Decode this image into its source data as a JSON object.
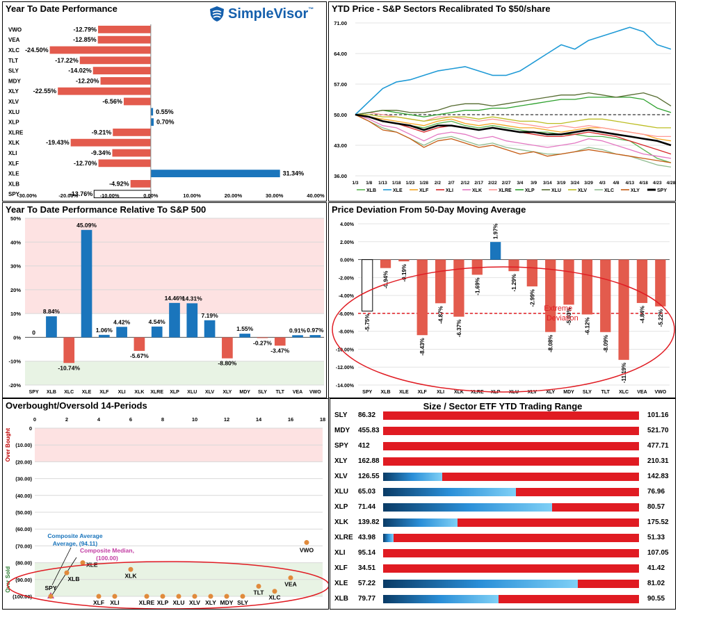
{
  "brand": {
    "name": "SimpleVisor",
    "tm": "™"
  },
  "chart_data": [
    {
      "id": "ytd",
      "type": "bar",
      "orientation": "horizontal",
      "title": "Year To Date Performance",
      "categories": [
        "VWO",
        "VEA",
        "XLC",
        "TLT",
        "SLY",
        "MDY",
        "XLY",
        "XLV",
        "XLU",
        "XLP",
        "XLRE",
        "XLK",
        "XLI",
        "XLF",
        "XLE",
        "XLB",
        "SPY"
      ],
      "values": [
        -12.79,
        -12.85,
        -24.5,
        -17.22,
        -14.02,
        -12.2,
        -22.55,
        -6.56,
        0.55,
        0.7,
        -9.21,
        -19.43,
        -9.34,
        -12.7,
        31.34,
        -4.92,
        -13.76
      ],
      "labels": [
        "-12.79%",
        "-12.85%",
        "-24.50%",
        "-17.22%",
        "-14.02%",
        "-12.20%",
        "-22.55%",
        "-6.56%",
        "0.55%",
        "0.70%",
        "-9.21%",
        "-19.43%",
        "-9.34%",
        "-12.70%",
        "31.34%",
        "-4.92%",
        "-13.76%"
      ],
      "xlim": [
        -30,
        40
      ],
      "xticks": [
        "-30.00%",
        "-20.00%",
        "-10.00%",
        "0.00%",
        "10.00%",
        "20.00%",
        "30.00%",
        "40.00%"
      ]
    },
    {
      "id": "recal",
      "type": "line",
      "title": "YTD Price - S&P Sectors Recalibrated To $50/share",
      "x": [
        "1/3",
        "1/8",
        "1/13",
        "1/18",
        "1/23",
        "1/28",
        "2/2",
        "2/7",
        "2/12",
        "2/17",
        "2/22",
        "2/27",
        "3/4",
        "3/9",
        "3/14",
        "3/19",
        "3/24",
        "3/29",
        "4/3",
        "4/8",
        "4/13",
        "4/18",
        "4/23",
        "4/28"
      ],
      "ylim": [
        36,
        71
      ],
      "yticks": [
        "36.00",
        "43.00",
        "50.00",
        "57.00",
        "64.00",
        "71.00"
      ],
      "reference_line": 50,
      "series": [
        {
          "name": "XLB",
          "color": "#5ab552",
          "values": [
            50,
            49.5,
            48.5,
            48,
            47.5,
            47,
            48,
            48.5,
            47.5,
            47,
            47.5,
            47,
            46.5,
            46,
            46,
            45.5,
            45.5,
            45,
            45,
            44.5,
            44,
            42,
            40,
            39
          ]
        },
        {
          "name": "XLE",
          "color": "#1f9ad6",
          "values": [
            50,
            53,
            56,
            57.5,
            58,
            59,
            60,
            60.5,
            61,
            60,
            59,
            59,
            60,
            62,
            64,
            66,
            65,
            67,
            68,
            69,
            70,
            69,
            66,
            65
          ]
        },
        {
          "name": "XLF",
          "color": "#f5a623",
          "values": [
            50,
            49.5,
            49,
            48.5,
            48,
            47.5,
            48.5,
            49,
            48,
            47.5,
            48,
            47.5,
            47,
            47,
            46.5,
            46,
            46.5,
            47,
            47,
            46.5,
            46,
            45.5,
            44.5,
            44
          ]
        },
        {
          "name": "XLI",
          "color": "#d62728",
          "values": [
            50,
            49.5,
            48.5,
            48,
            47,
            46,
            47,
            47.5,
            47,
            46.5,
            47,
            46.5,
            46,
            45.5,
            45,
            45,
            45.5,
            46,
            45.5,
            45,
            44,
            43,
            42,
            41
          ]
        },
        {
          "name": "XLK",
          "color": "#e377c2",
          "values": [
            50,
            49,
            47.5,
            47,
            45.5,
            44,
            45.5,
            46,
            45.5,
            44.5,
            45,
            44,
            43.5,
            43,
            42.5,
            43,
            43.5,
            44.5,
            44,
            43,
            42,
            41,
            40.5,
            40
          ]
        },
        {
          "name": "XLRE",
          "color": "#ff9896",
          "values": [
            50,
            50.5,
            50,
            49.5,
            49,
            48.5,
            49.5,
            49.5,
            49,
            48.5,
            49,
            48.5,
            48,
            47.5,
            47,
            47.5,
            47,
            47.5,
            47,
            46.5,
            46,
            45.5,
            45,
            45
          ]
        },
        {
          "name": "XLP",
          "color": "#2ca02c",
          "values": [
            50,
            50.5,
            51,
            50.5,
            50,
            49.5,
            50,
            50.5,
            51,
            51,
            51.5,
            51.5,
            52,
            52.5,
            53,
            53.5,
            53.5,
            54,
            54,
            54,
            54,
            53.5,
            51.5,
            50.5
          ]
        },
        {
          "name": "XLU",
          "color": "#556b2f",
          "values": [
            50,
            50.5,
            51,
            51,
            50.5,
            50.5,
            51,
            52,
            52.5,
            52.5,
            52,
            52.5,
            53,
            53.5,
            54,
            54.5,
            54.5,
            55,
            54.5,
            54,
            54.5,
            55,
            54,
            52
          ]
        },
        {
          "name": "XLV",
          "color": "#bcbd22",
          "values": [
            50,
            50,
            49.5,
            49.5,
            49,
            48.5,
            49,
            49.5,
            49.5,
            49,
            49.5,
            49,
            48.5,
            48.5,
            48,
            48,
            48.5,
            49,
            49,
            48.5,
            48,
            47.5,
            47,
            47
          ]
        },
        {
          "name": "XLC",
          "color": "#8fbc8f",
          "values": [
            50,
            48.5,
            47,
            46,
            44.5,
            43,
            44.5,
            45,
            44,
            43,
            43.5,
            42.5,
            42,
            41.5,
            41,
            41,
            41.5,
            42.5,
            42,
            41,
            40.5,
            39.5,
            38.5,
            38
          ]
        },
        {
          "name": "XLY",
          "color": "#c55a11",
          "values": [
            50,
            48.5,
            46.5,
            46,
            44.5,
            42.5,
            44,
            44.5,
            43.5,
            42.5,
            43,
            42,
            41,
            41.5,
            40.5,
            41,
            41.5,
            42,
            41.5,
            41,
            40.5,
            40,
            39.5,
            39
          ]
        },
        {
          "name": "SPY",
          "color": "#000000",
          "values": [
            50,
            49.5,
            48.5,
            48,
            47.5,
            46.5,
            47.5,
            47.5,
            47,
            46.5,
            47,
            46.5,
            46,
            46,
            45.5,
            45.5,
            46,
            46.5,
            46,
            45.5,
            45,
            44.5,
            44,
            43
          ]
        }
      ],
      "legend": [
        "XLB",
        "XLE",
        "XLF",
        "XLI",
        "XLK",
        "XLRE",
        "XLP",
        "XLU",
        "XLV",
        "XLC",
        "XLY",
        "SPY"
      ]
    },
    {
      "id": "relative",
      "type": "bar",
      "title": "Year To Date Performance Relative To S&P 500",
      "categories": [
        "SPY",
        "XLB",
        "XLC",
        "XLE",
        "XLF",
        "XLI",
        "XLK",
        "XLRE",
        "XLP",
        "XLU",
        "XLV",
        "XLY",
        "MDY",
        "SLY",
        "TLT",
        "VEA",
        "VWO"
      ],
      "values": [
        0,
        8.84,
        -10.74,
        45.09,
        1.06,
        4.42,
        -5.67,
        4.54,
        14.46,
        14.31,
        7.19,
        -8.8,
        1.55,
        -0.27,
        -3.47,
        0.91,
        0.97
      ],
      "labels": [
        "0",
        "8.84%",
        "-10.74%",
        "45.09%",
        "1.06%",
        "4.42%",
        "-5.67%",
        "4.54%",
        "14.46%",
        "14.31%",
        "7.19%",
        "-8.80%",
        "1.55%",
        "-0.27%",
        "-3.47%",
        "0.91%",
        "0.97%"
      ],
      "ylim": [
        -20,
        50
      ],
      "yticks": [
        "-20%",
        "-10%",
        "0%",
        "10%",
        "20%",
        "30%",
        "40%",
        "50%"
      ],
      "bands": {
        "upper_from": 10,
        "lower_to": -10
      }
    },
    {
      "id": "deviation",
      "type": "bar",
      "title": "Price Deviation From 50-Day Moving Average",
      "categories": [
        "SPY",
        "XLB",
        "XLE",
        "XLF",
        "XLI",
        "XLK",
        "XLRE",
        "XLP",
        "XLU",
        "XLV",
        "XLY",
        "MDY",
        "SLY",
        "TLT",
        "XLC",
        "VEA",
        "VWO"
      ],
      "values": [
        -5.75,
        -0.94,
        -0.19,
        -8.43,
        -4.87,
        -6.37,
        -1.69,
        1.97,
        -1.29,
        -2.99,
        -8.08,
        -5.03,
        -6.12,
        -8.09,
        -11.19,
        -4.84,
        -5.22
      ],
      "labels": [
        "-5.75%",
        "-0.94%",
        "-0.19%",
        "-8.43%",
        "-4.87%",
        "-6.37%",
        "-1.69%",
        "1.97%",
        "-1.29%",
        "-2.99%",
        "-8.08%",
        "-5.03%",
        "-6.12%",
        "-8.09%",
        "-11.19%",
        "-4.84%",
        "-5.22%"
      ],
      "ylim": [
        -14,
        4
      ],
      "yticks": [
        "-14.00%",
        "-12.00%",
        "-10.00%",
        "-8.00%",
        "-6.00%",
        "-4.00%",
        "-2.00%",
        "0.00%",
        "2.00%",
        "4.00%"
      ],
      "threshold": -6,
      "annotation": [
        "Extreme",
        "Deviation"
      ]
    },
    {
      "id": "obos",
      "type": "scatter",
      "title": "Overbought/Oversold 14-Periods",
      "xlim": [
        0,
        18
      ],
      "xticks": [
        "0",
        "2",
        "4",
        "6",
        "8",
        "10",
        "12",
        "14",
        "16",
        "18"
      ],
      "ylim": [
        0,
        -100
      ],
      "yticks": [
        "0",
        "(10.00)",
        "(20.00)",
        "(30.00)",
        "(40.00)",
        "(50.00)",
        "(60.00)",
        "(70.00)",
        "(80.00)",
        "(90.00)",
        "(100.00)"
      ],
      "ylabel_top": "Over Bought",
      "ylabel_bottom": "Over Sold",
      "points": [
        {
          "name": "SPY",
          "x": 1,
          "y": -100
        },
        {
          "name": "XLB",
          "x": 2,
          "y": -86
        },
        {
          "name": "XLE",
          "x": 3,
          "y": -80
        },
        {
          "name": "XLF",
          "x": 4,
          "y": -100
        },
        {
          "name": "XLI",
          "x": 5,
          "y": -100
        },
        {
          "name": "XLK",
          "x": 6,
          "y": -84
        },
        {
          "name": "XLRE",
          "x": 7,
          "y": -100
        },
        {
          "name": "XLP",
          "x": 8,
          "y": -100
        },
        {
          "name": "XLU",
          "x": 9,
          "y": -100
        },
        {
          "name": "XLV",
          "x": 10,
          "y": -100
        },
        {
          "name": "XLY",
          "x": 11,
          "y": -100
        },
        {
          "name": "MDY",
          "x": 12,
          "y": -100
        },
        {
          "name": "SLY",
          "x": 13,
          "y": -100
        },
        {
          "name": "TLT",
          "x": 14,
          "y": -94
        },
        {
          "name": "XLC",
          "x": 15,
          "y": -97
        },
        {
          "name": "VEA",
          "x": 16,
          "y": -89
        },
        {
          "name": "VWO",
          "x": 17,
          "y": -68
        }
      ],
      "composite_average": {
        "label": "Composite Average,",
        "value": "(94.11)",
        "x": 1,
        "y": -94.11
      },
      "composite_median": {
        "label": "Composite Median,",
        "value": "(100.00)",
        "x": 1,
        "y": -100
      }
    },
    {
      "id": "range",
      "type": "table",
      "title": "Size / Sector ETF YTD Trading Range",
      "rows": [
        {
          "symbol": "SLY",
          "low": "86.32",
          "high": "101.16",
          "position": 0.0
        },
        {
          "symbol": "MDY",
          "low": "455.83",
          "high": "521.70",
          "position": 0.0
        },
        {
          "symbol": "SPY",
          "low": "412",
          "high": "477.71",
          "position": 0.0
        },
        {
          "symbol": "XLY",
          "low": "162.88",
          "high": "210.31",
          "position": 0.0
        },
        {
          "symbol": "XLV",
          "low": "126.55",
          "high": "142.83",
          "position": 0.23
        },
        {
          "symbol": "XLU",
          "low": "65.03",
          "high": "76.96",
          "position": 0.52
        },
        {
          "symbol": "XLP",
          "low": "71.44",
          "high": "80.57",
          "position": 0.66
        },
        {
          "symbol": "XLK",
          "low": "139.82",
          "high": "175.52",
          "position": 0.29
        },
        {
          "symbol": "XLRE",
          "low": "43.98",
          "high": "51.33",
          "position": 0.04
        },
        {
          "symbol": "XLI",
          "low": "95.14",
          "high": "107.05",
          "position": 0.0
        },
        {
          "symbol": "XLF",
          "low": "34.51",
          "high": "41.42",
          "position": 0.0
        },
        {
          "symbol": "XLE",
          "low": "57.22",
          "high": "81.02",
          "position": 0.76
        },
        {
          "symbol": "XLB",
          "low": "79.77",
          "high": "90.55",
          "position": 0.45
        }
      ]
    }
  ]
}
